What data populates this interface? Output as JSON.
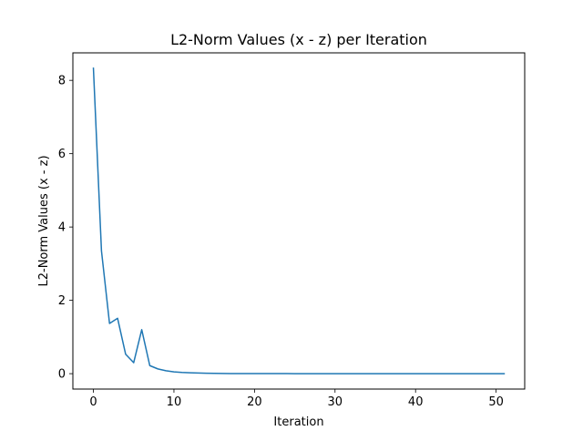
{
  "chart_data": {
    "type": "line",
    "title": "L2-Norm Values (x - z) per Iteration",
    "xlabel": "Iteration",
    "ylabel": "L2-Norm Values (x - z)",
    "xlim": [
      -2.55,
      53.55
    ],
    "ylim": [
      -0.42,
      8.75
    ],
    "xticks": [
      0,
      10,
      20,
      30,
      40,
      50
    ],
    "yticks": [
      0,
      2,
      4,
      6,
      8
    ],
    "grid": false,
    "legend": "none",
    "series": [
      {
        "color": "#1f77b4",
        "x": [
          0,
          1,
          2,
          3,
          4,
          5,
          6,
          7,
          8,
          9,
          10,
          11,
          12,
          13,
          14,
          15,
          16,
          17,
          18,
          19,
          20,
          21,
          22,
          23,
          24,
          25,
          26,
          27,
          28,
          29,
          30,
          31,
          32,
          33,
          34,
          35,
          36,
          37,
          38,
          39,
          40,
          41,
          42,
          43,
          44,
          45,
          46,
          47,
          48,
          49,
          50,
          51
        ],
        "y": [
          8.33,
          3.35,
          1.37,
          1.51,
          0.53,
          0.3,
          1.2,
          0.22,
          0.13,
          0.08,
          0.05,
          0.035,
          0.025,
          0.018,
          0.012,
          0.008,
          0.006,
          0.004,
          0.003,
          0.002,
          0.002,
          0.001,
          0.001,
          0.001,
          0.001,
          0.0,
          0.0,
          0.0,
          0.0,
          0.0,
          0.0,
          0.0,
          0.0,
          0.0,
          0.0,
          0.0,
          0.0,
          0.0,
          0.0,
          0.0,
          0.0,
          0.0,
          0.0,
          0.0,
          0.0,
          0.0,
          0.0,
          0.0,
          0.0,
          0.0,
          0.0,
          0.0
        ]
      }
    ]
  }
}
